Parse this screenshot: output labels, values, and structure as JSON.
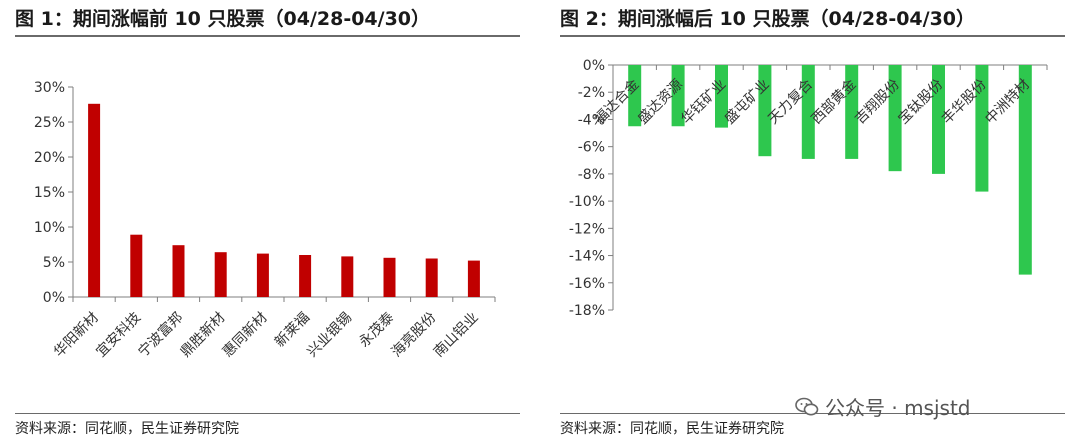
{
  "charts": [
    {
      "title": "图 1：期间涨幅前 10 只股票（04/28-04/30）",
      "source": "资料来源：同花顺，民生证券研究院"
    },
    {
      "title": "图 2：期间涨幅后 10 只股票（04/28-04/30）",
      "source": "资料来源：同花顺，民生证券研究院"
    }
  ],
  "watermark": "公众号 · msjstd",
  "chart_data": [
    {
      "type": "bar",
      "categories": [
        "华阳新材",
        "宜安科技",
        "宁波富邦",
        "鼎胜新材",
        "惠同新材",
        "新莱福",
        "兴业银锡",
        "永茂泰",
        "海亮股份",
        "南山铝业"
      ],
      "values": [
        27.6,
        8.9,
        7.4,
        6.4,
        6.2,
        6.0,
        5.8,
        5.6,
        5.5,
        5.2
      ],
      "unit": "%",
      "ylim": [
        0,
        30
      ],
      "yticks": [
        0,
        5,
        10,
        15,
        20,
        25,
        30
      ],
      "ytick_labels": [
        "0%",
        "5%",
        "10%",
        "15%",
        "20%",
        "25%",
        "30%"
      ],
      "grid": false,
      "color": "#c00000"
    },
    {
      "type": "bar",
      "categories": [
        "福达合金",
        "盛达资源",
        "华钰矿业",
        "盛屯矿业",
        "天力复合",
        "西部黄金",
        "吉翔股份",
        "宝钛股份",
        "丰华股份",
        "中洲特材"
      ],
      "values": [
        -4.5,
        -4.5,
        -4.6,
        -6.7,
        -6.9,
        -6.9,
        -7.8,
        -8.0,
        -9.3,
        -15.4
      ],
      "unit": "%",
      "ylim": [
        -18,
        0
      ],
      "yticks": [
        0,
        -2,
        -4,
        -6,
        -8,
        -10,
        -12,
        -14,
        -16,
        -18
      ],
      "ytick_labels": [
        "0%",
        "-2%",
        "-4%",
        "-6%",
        "-8%",
        "-10%",
        "-12%",
        "-14%",
        "-16%",
        "-18%"
      ],
      "grid": false,
      "color": "#2ec74e"
    }
  ]
}
